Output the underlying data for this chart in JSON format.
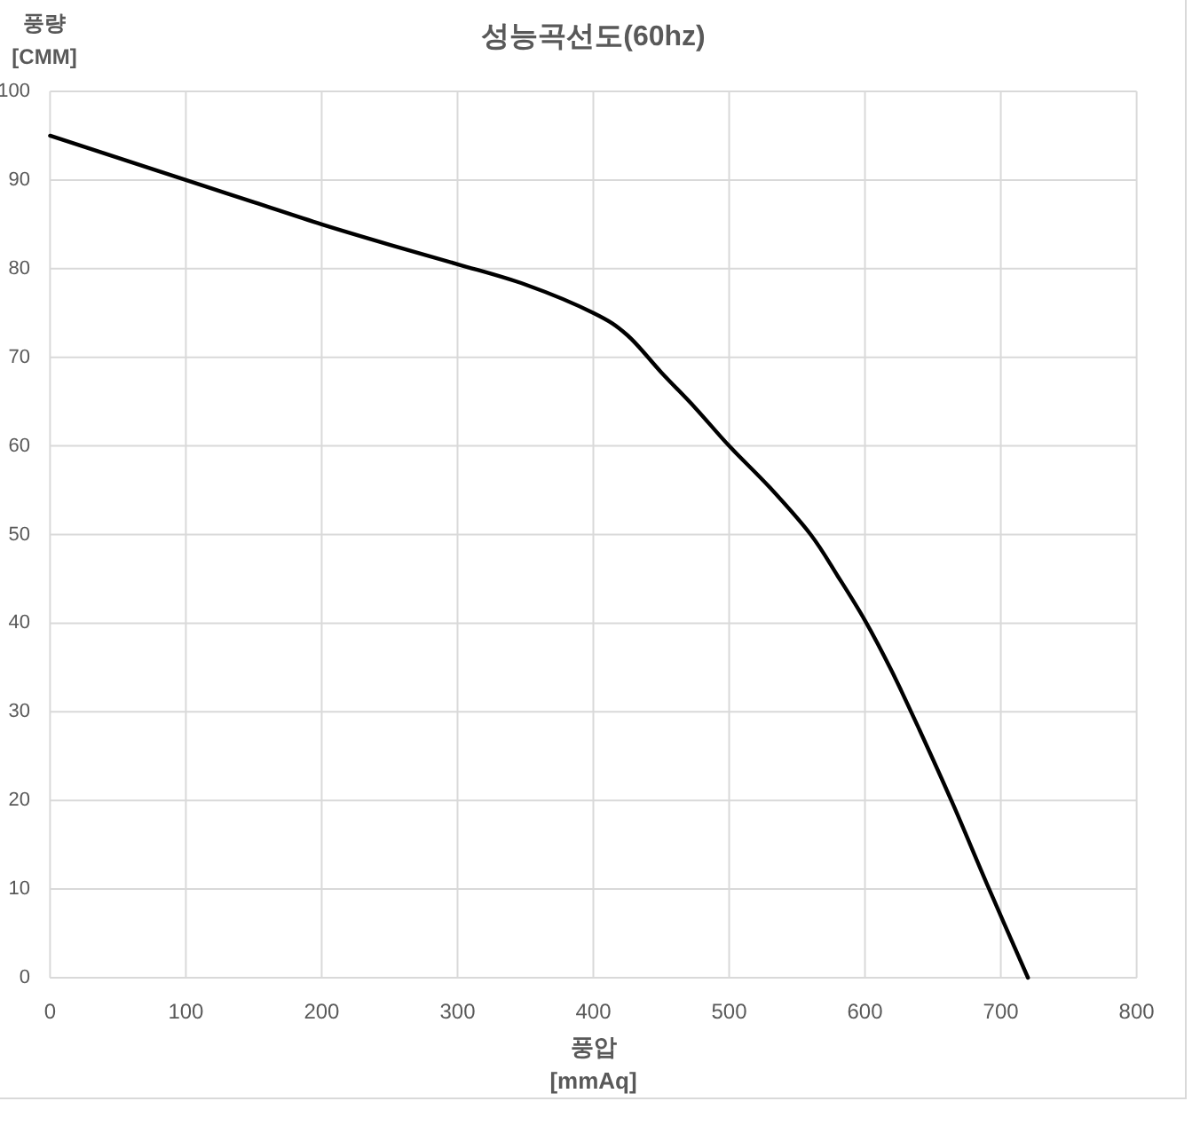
{
  "chart_data": {
    "type": "line",
    "title": "성능곡선도(60hz)",
    "xlabel": "풍압 [mmAq]",
    "ylabel": "풍량 [CMM]",
    "x": [
      0,
      50,
      100,
      150,
      200,
      250,
      300,
      350,
      400,
      425,
      450,
      475,
      500,
      530,
      560,
      580,
      600,
      620,
      640,
      665,
      690,
      720
    ],
    "series": [
      {
        "color": "#000000",
        "values": [
          95,
          92.5,
          90,
          87.5,
          85,
          82.7,
          80.5,
          78.2,
          75,
          72.5,
          68.3,
          64.3,
          60,
          55.3,
          50,
          45.3,
          40.3,
          34.5,
          28,
          19.5,
          10.5,
          0
        ]
      }
    ],
    "xlim": [
      0,
      800
    ],
    "ylim": [
      0,
      100
    ],
    "xticks": [
      0,
      100,
      200,
      300,
      400,
      500,
      600,
      700,
      800
    ],
    "yticks": [
      0,
      10,
      20,
      30,
      40,
      50,
      60,
      70,
      80,
      90,
      100
    ],
    "grid": true,
    "line_style": "solid"
  }
}
